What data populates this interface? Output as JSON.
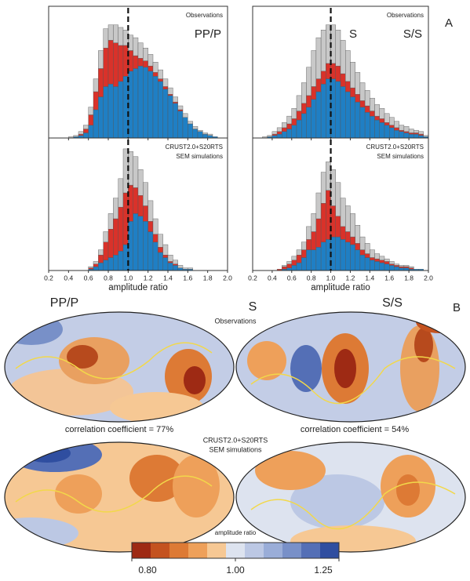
{
  "figure": {
    "panel_a": "A",
    "panel_b": "B",
    "map_phase_left": "PP/P",
    "map_phase_mid": "S",
    "map_phase_right": "S/S",
    "map_obs": "Observations",
    "corr_left": "correlation coefficient = 77%",
    "corr_right": "correlation coefficient = 54%",
    "map_sim_1": "CRUST2.0+S20RTS",
    "map_sim_2": "SEM simulations"
  },
  "chart_data": [
    {
      "type": "histogram",
      "annotations": [
        "Observations",
        "PP/P"
      ],
      "bins": [
        0.2,
        0.25,
        0.3,
        0.35,
        0.4,
        0.45,
        0.5,
        0.55,
        0.6,
        0.65,
        0.7,
        0.75,
        0.8,
        0.85,
        0.9,
        0.95,
        1,
        1.05,
        1.1,
        1.15,
        1.2,
        1.25,
        1.3,
        1.35,
        1.4,
        1.45,
        1.5,
        1.55,
        1.6,
        1.65,
        1.7,
        1.75,
        1.8,
        1.85,
        1.9,
        1.95,
        2
      ],
      "series": [
        {
          "color": "#1f7fc4",
          "values": [
            0,
            0,
            0,
            0,
            0,
            1,
            2,
            4,
            10,
            22,
            32,
            40,
            42,
            40,
            44,
            48,
            52,
            54,
            56,
            55,
            52,
            48,
            44,
            38,
            33,
            27,
            21,
            16,
            11,
            7,
            5,
            3,
            2,
            1,
            0,
            0
          ]
        },
        {
          "color": "#d9322a",
          "values": [
            0,
            0,
            0,
            0,
            0,
            0,
            1,
            3,
            8,
            14,
            22,
            30,
            34,
            34,
            28,
            24,
            16,
            10,
            6,
            5,
            4,
            3,
            2,
            2,
            1,
            1,
            1,
            0,
            0,
            0,
            0,
            0,
            0,
            0,
            0,
            0
          ]
        },
        {
          "color": "#c8c8c8",
          "values": [
            0,
            0,
            0,
            0,
            1,
            1,
            2,
            3,
            6,
            10,
            14,
            15,
            12,
            14,
            14,
            12,
            12,
            14,
            12,
            10,
            9,
            8,
            7,
            6,
            5,
            4,
            3,
            3,
            2,
            2,
            1,
            1,
            1,
            0,
            0,
            0
          ]
        }
      ],
      "xlim": [
        0.2,
        2.0
      ],
      "ylim": [
        0,
        100
      ],
      "reference_line": 1
    },
    {
      "type": "histogram",
      "annotations": [
        "Observations",
        "S",
        "S/S"
      ],
      "bins": [
        0.2,
        0.25,
        0.3,
        0.35,
        0.4,
        0.45,
        0.5,
        0.55,
        0.6,
        0.65,
        0.7,
        0.75,
        0.8,
        0.85,
        0.9,
        0.95,
        1,
        1.05,
        1.1,
        1.15,
        1.2,
        1.25,
        1.3,
        1.35,
        1.4,
        1.45,
        1.5,
        1.55,
        1.6,
        1.65,
        1.7,
        1.75,
        1.8,
        1.85,
        1.9,
        1.95,
        2
      ],
      "series": [
        {
          "color": "#1f7fc4",
          "values": [
            0,
            0,
            0,
            1,
            2,
            3,
            5,
            7,
            10,
            14,
            19,
            24,
            30,
            36,
            42,
            46,
            46,
            44,
            40,
            36,
            32,
            28,
            24,
            20,
            17,
            14,
            12,
            10,
            8,
            6,
            5,
            4,
            3,
            3,
            2,
            1
          ]
        },
        {
          "color": "#d9322a",
          "values": [
            0,
            0,
            0,
            0,
            1,
            2,
            3,
            4,
            5,
            7,
            8,
            9,
            10,
            10,
            10,
            12,
            12,
            12,
            10,
            8,
            7,
            6,
            5,
            5,
            4,
            3,
            3,
            2,
            2,
            2,
            1,
            1,
            1,
            1,
            1,
            0
          ]
        },
        {
          "color": "#c8c8c8",
          "values": [
            0,
            0,
            1,
            1,
            2,
            3,
            4,
            6,
            8,
            12,
            16,
            22,
            28,
            32,
            32,
            30,
            30,
            28,
            26,
            24,
            20,
            17,
            14,
            12,
            10,
            9,
            8,
            7,
            6,
            5,
            4,
            4,
            3,
            2,
            2,
            1
          ]
        }
      ],
      "xlim": [
        0.2,
        2.0
      ],
      "ylim": [
        0,
        100
      ],
      "reference_line": 1
    },
    {
      "type": "histogram",
      "annotations": [
        "CRUST2.0+S20RTS",
        "SEM simulations"
      ],
      "xlabel": "amplitude ratio",
      "bins": [
        0.2,
        0.25,
        0.3,
        0.35,
        0.4,
        0.45,
        0.5,
        0.55,
        0.6,
        0.65,
        0.7,
        0.75,
        0.8,
        0.85,
        0.9,
        0.95,
        1,
        1.05,
        1.1,
        1.15,
        1.2,
        1.25,
        1.3,
        1.35,
        1.4,
        1.45,
        1.5,
        1.55,
        1.6,
        1.65,
        1.7,
        1.75,
        1.8,
        1.85,
        1.9,
        1.95,
        2
      ],
      "series": [
        {
          "color": "#1f7fc4",
          "values": [
            0,
            0,
            0,
            0,
            0,
            0,
            0,
            0,
            1,
            3,
            6,
            8,
            10,
            12,
            15,
            20,
            38,
            44,
            42,
            38,
            30,
            22,
            14,
            10,
            6,
            4,
            2,
            1,
            1,
            0,
            0,
            0,
            0,
            0,
            0,
            0
          ]
        },
        {
          "color": "#d9322a",
          "values": [
            0,
            0,
            0,
            0,
            0,
            0,
            0,
            0,
            1,
            2,
            6,
            14,
            22,
            28,
            34,
            40,
            28,
            20,
            16,
            12,
            8,
            6,
            4,
            2,
            1,
            1,
            0,
            0,
            0,
            0,
            0,
            0,
            0,
            0,
            0,
            0
          ]
        },
        {
          "color": "#c8c8c8",
          "values": [
            0,
            0,
            0,
            0,
            0,
            0,
            0,
            0,
            1,
            2,
            4,
            8,
            12,
            16,
            22,
            34,
            26,
            24,
            20,
            18,
            16,
            12,
            10,
            8,
            5,
            3,
            2,
            1,
            1,
            0,
            0,
            0,
            0,
            0,
            0,
            0
          ]
        }
      ],
      "xlim": [
        0.2,
        2.0
      ],
      "ylim": [
        0,
        100
      ],
      "reference_line": 1,
      "xticks": [
        0.2,
        0.4,
        0.6,
        0.8,
        {
          "value": 1,
          "label": "1.0"
        },
        1.2,
        1.4,
        1.6,
        1.8,
        {
          "value": 2,
          "label": "2.0"
        }
      ]
    },
    {
      "type": "histogram",
      "annotations": [
        "CRUST2.0+S20RTS",
        "SEM simulations"
      ],
      "xlabel": "amplitude ratio",
      "bins": [
        0.2,
        0.25,
        0.3,
        0.35,
        0.4,
        0.45,
        0.5,
        0.55,
        0.6,
        0.65,
        0.7,
        0.75,
        0.8,
        0.85,
        0.9,
        0.95,
        1,
        1.05,
        1.1,
        1.15,
        1.2,
        1.25,
        1.3,
        1.35,
        1.4,
        1.45,
        1.5,
        1.55,
        1.6,
        1.65,
        1.7,
        1.75,
        1.8,
        1.85,
        1.9,
        1.95,
        2
      ],
      "series": [
        {
          "color": "#1f7fc4",
          "values": [
            0,
            0,
            0,
            0,
            0,
            0,
            1,
            2,
            4,
            6,
            10,
            16,
            16,
            18,
            22,
            24,
            26,
            26,
            24,
            22,
            20,
            16,
            12,
            10,
            8,
            7,
            6,
            5,
            4,
            3,
            2,
            2,
            1,
            1,
            1,
            0
          ]
        },
        {
          "color": "#d9322a",
          "values": [
            0,
            0,
            0,
            0,
            0,
            1,
            2,
            3,
            4,
            6,
            6,
            8,
            14,
            22,
            30,
            38,
            24,
            16,
            10,
            8,
            6,
            5,
            4,
            3,
            2,
            2,
            2,
            2,
            1,
            1,
            1,
            1,
            1,
            0,
            0,
            0
          ]
        },
        {
          "color": "#c8c8c8",
          "values": [
            0,
            0,
            0,
            0,
            0,
            0,
            1,
            2,
            3,
            4,
            6,
            10,
            14,
            20,
            24,
            22,
            28,
            26,
            22,
            20,
            18,
            14,
            10,
            8,
            6,
            4,
            3,
            2,
            2,
            1,
            1,
            1,
            1,
            0,
            0,
            0
          ]
        }
      ],
      "xlim": [
        0.2,
        2.0
      ],
      "ylim": [
        0,
        100
      ],
      "reference_line": 1,
      "xticks": [
        0.2,
        0.4,
        0.6,
        0.8,
        {
          "value": 1,
          "label": "1.0"
        },
        1.2,
        1.4,
        1.6,
        1.8,
        {
          "value": 2,
          "label": "2.0"
        }
      ]
    },
    {
      "type": "colorbar",
      "title": "amplitude ratio",
      "log": true,
      "xlim": [
        0.8,
        1.25
      ],
      "colors": [
        "#9e2a14",
        "#c4521f",
        "#dd7a35",
        "#eea05a",
        "#f6c894",
        "#dde3ef",
        "#bcc8e4",
        "#9aadd8",
        "#7890c8",
        "#546fb6",
        "#2f4ea0"
      ],
      "xticks": [
        {
          "value": 0.8,
          "label": "0.80"
        },
        {
          "value": 1,
          "label": "1.00"
        },
        {
          "value": 1.25,
          "label": "1.25"
        }
      ]
    }
  ]
}
